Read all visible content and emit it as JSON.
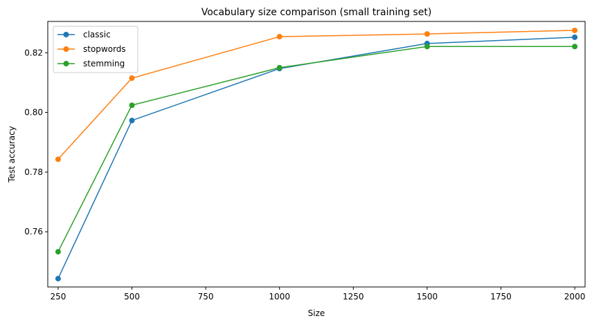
{
  "chart_data": {
    "type": "line",
    "title": "Vocabulary size comparison (small training set)",
    "xlabel": "Size",
    "ylabel": "Test accuracy",
    "x": [
      250,
      500,
      1000,
      1500,
      2000
    ],
    "xlim": [
      215,
      2035
    ],
    "ylim": [
      0.7415,
      0.8305
    ],
    "xticks": [
      250,
      500,
      750,
      1000,
      1250,
      1500,
      1750,
      2000
    ],
    "yticks": [
      0.76,
      0.78,
      0.8,
      0.82
    ],
    "ytick_labels": [
      "0.76",
      "0.78",
      "0.80",
      "0.82"
    ],
    "grid": false,
    "legend_position": "top-left",
    "series": [
      {
        "name": "classic",
        "color": "#1f77b4",
        "values": [
          0.7443,
          0.7973,
          0.8147,
          0.8231,
          0.8252
        ]
      },
      {
        "name": "stopwords",
        "color": "#ff7f0e",
        "values": [
          0.7843,
          0.8115,
          0.8254,
          0.8263,
          0.8275
        ]
      },
      {
        "name": "stemming",
        "color": "#2ca02c",
        "values": [
          0.7533,
          0.8024,
          0.815,
          0.8221,
          0.8221
        ]
      }
    ]
  }
}
